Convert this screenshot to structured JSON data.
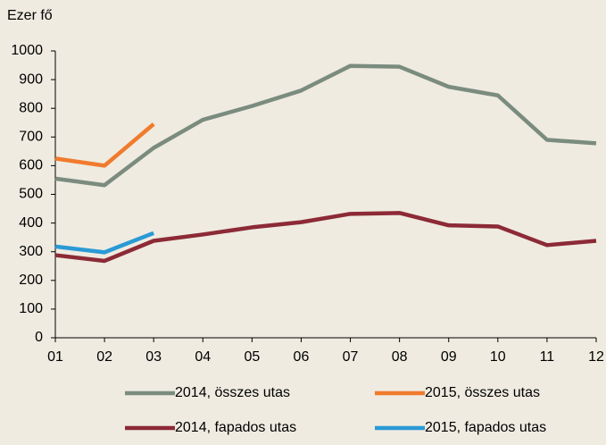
{
  "chart_data": {
    "type": "line",
    "y_label": "Ezer fő",
    "categories": [
      "01",
      "02",
      "03",
      "04",
      "05",
      "06",
      "07",
      "08",
      "09",
      "10",
      "11",
      "12"
    ],
    "series": [
      {
        "name": "2014, összes utas",
        "color": "#7b8c7f",
        "values": [
          555,
          532,
          662,
          760,
          808,
          862,
          948,
          945,
          875,
          845,
          690,
          678
        ]
      },
      {
        "name": "2015, összes utas",
        "color": "#f07b2c",
        "values": [
          625,
          600,
          745,
          null,
          null,
          null,
          null,
          null,
          null,
          null,
          null,
          null
        ]
      },
      {
        "name": "2014, fapados utas",
        "color": "#8c2a36",
        "values": [
          288,
          268,
          338,
          360,
          385,
          403,
          432,
          435,
          392,
          388,
          323,
          338
        ]
      },
      {
        "name": "2015, fapados utas",
        "color": "#2a9ad6",
        "values": [
          318,
          298,
          365,
          null,
          null,
          null,
          null,
          null,
          null,
          null,
          null,
          null
        ]
      }
    ],
    "ylim": [
      0,
      1000
    ],
    "yticks": [
      0,
      100,
      200,
      300,
      400,
      500,
      600,
      700,
      800,
      900,
      1000
    ]
  }
}
